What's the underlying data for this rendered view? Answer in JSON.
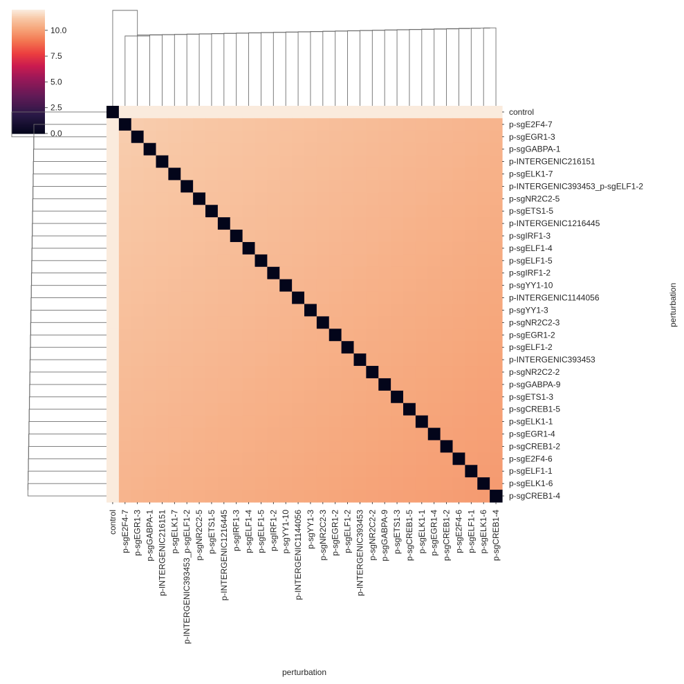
{
  "chart_data": {
    "type": "heatmap",
    "title": "",
    "xlabel": "perturbation",
    "ylabel": "perturbation",
    "labels": [
      "control",
      "p-sgE2F4-7",
      "p-sgEGR1-3",
      "p-sgGABPA-1",
      "p-INTERGENIC216151",
      "p-sgELK1-7",
      "p-INTERGENIC393453_p-sgELF1-2",
      "p-sgNR2C2-5",
      "p-sgETS1-5",
      "p-INTERGENIC1216445",
      "p-sgIRF1-3",
      "p-sgELF1-4",
      "p-sgELF1-5",
      "p-sgIRF1-2",
      "p-sgYY1-10",
      "p-INTERGENIC1144056",
      "p-sgYY1-3",
      "p-sgNR2C2-3",
      "p-sgEGR1-2",
      "p-sgELF1-2",
      "p-INTERGENIC393453",
      "p-sgNR2C2-2",
      "p-sgGABPA-9",
      "p-sgETS1-3",
      "p-sgCREB1-5",
      "p-sgELK1-1",
      "p-sgEGR1-4",
      "p-sgCREB1-2",
      "p-sgE2F4-6",
      "p-sgELF1-1",
      "p-sgELK1-6",
      "p-sgCREB1-4"
    ],
    "value_summary": {
      "diagonal": 0,
      "control_vs_others": 12.0,
      "first_perturbation_vs_others": 11.3,
      "last_perturbation_vs_others": 9.9
    },
    "colorbar": {
      "ticks": [
        0.0,
        2.5,
        5.0,
        7.5,
        10.0
      ],
      "tick_labels": [
        "0.0",
        "2.5",
        "5.0",
        "7.5",
        "10.0"
      ],
      "vmin": 0,
      "vmax": 12.0,
      "colormap": "rocket"
    },
    "dendrogram": {
      "description": "row and column dendrograms; control is the outgroup, all perturbations merge at nearly equal heights"
    }
  }
}
